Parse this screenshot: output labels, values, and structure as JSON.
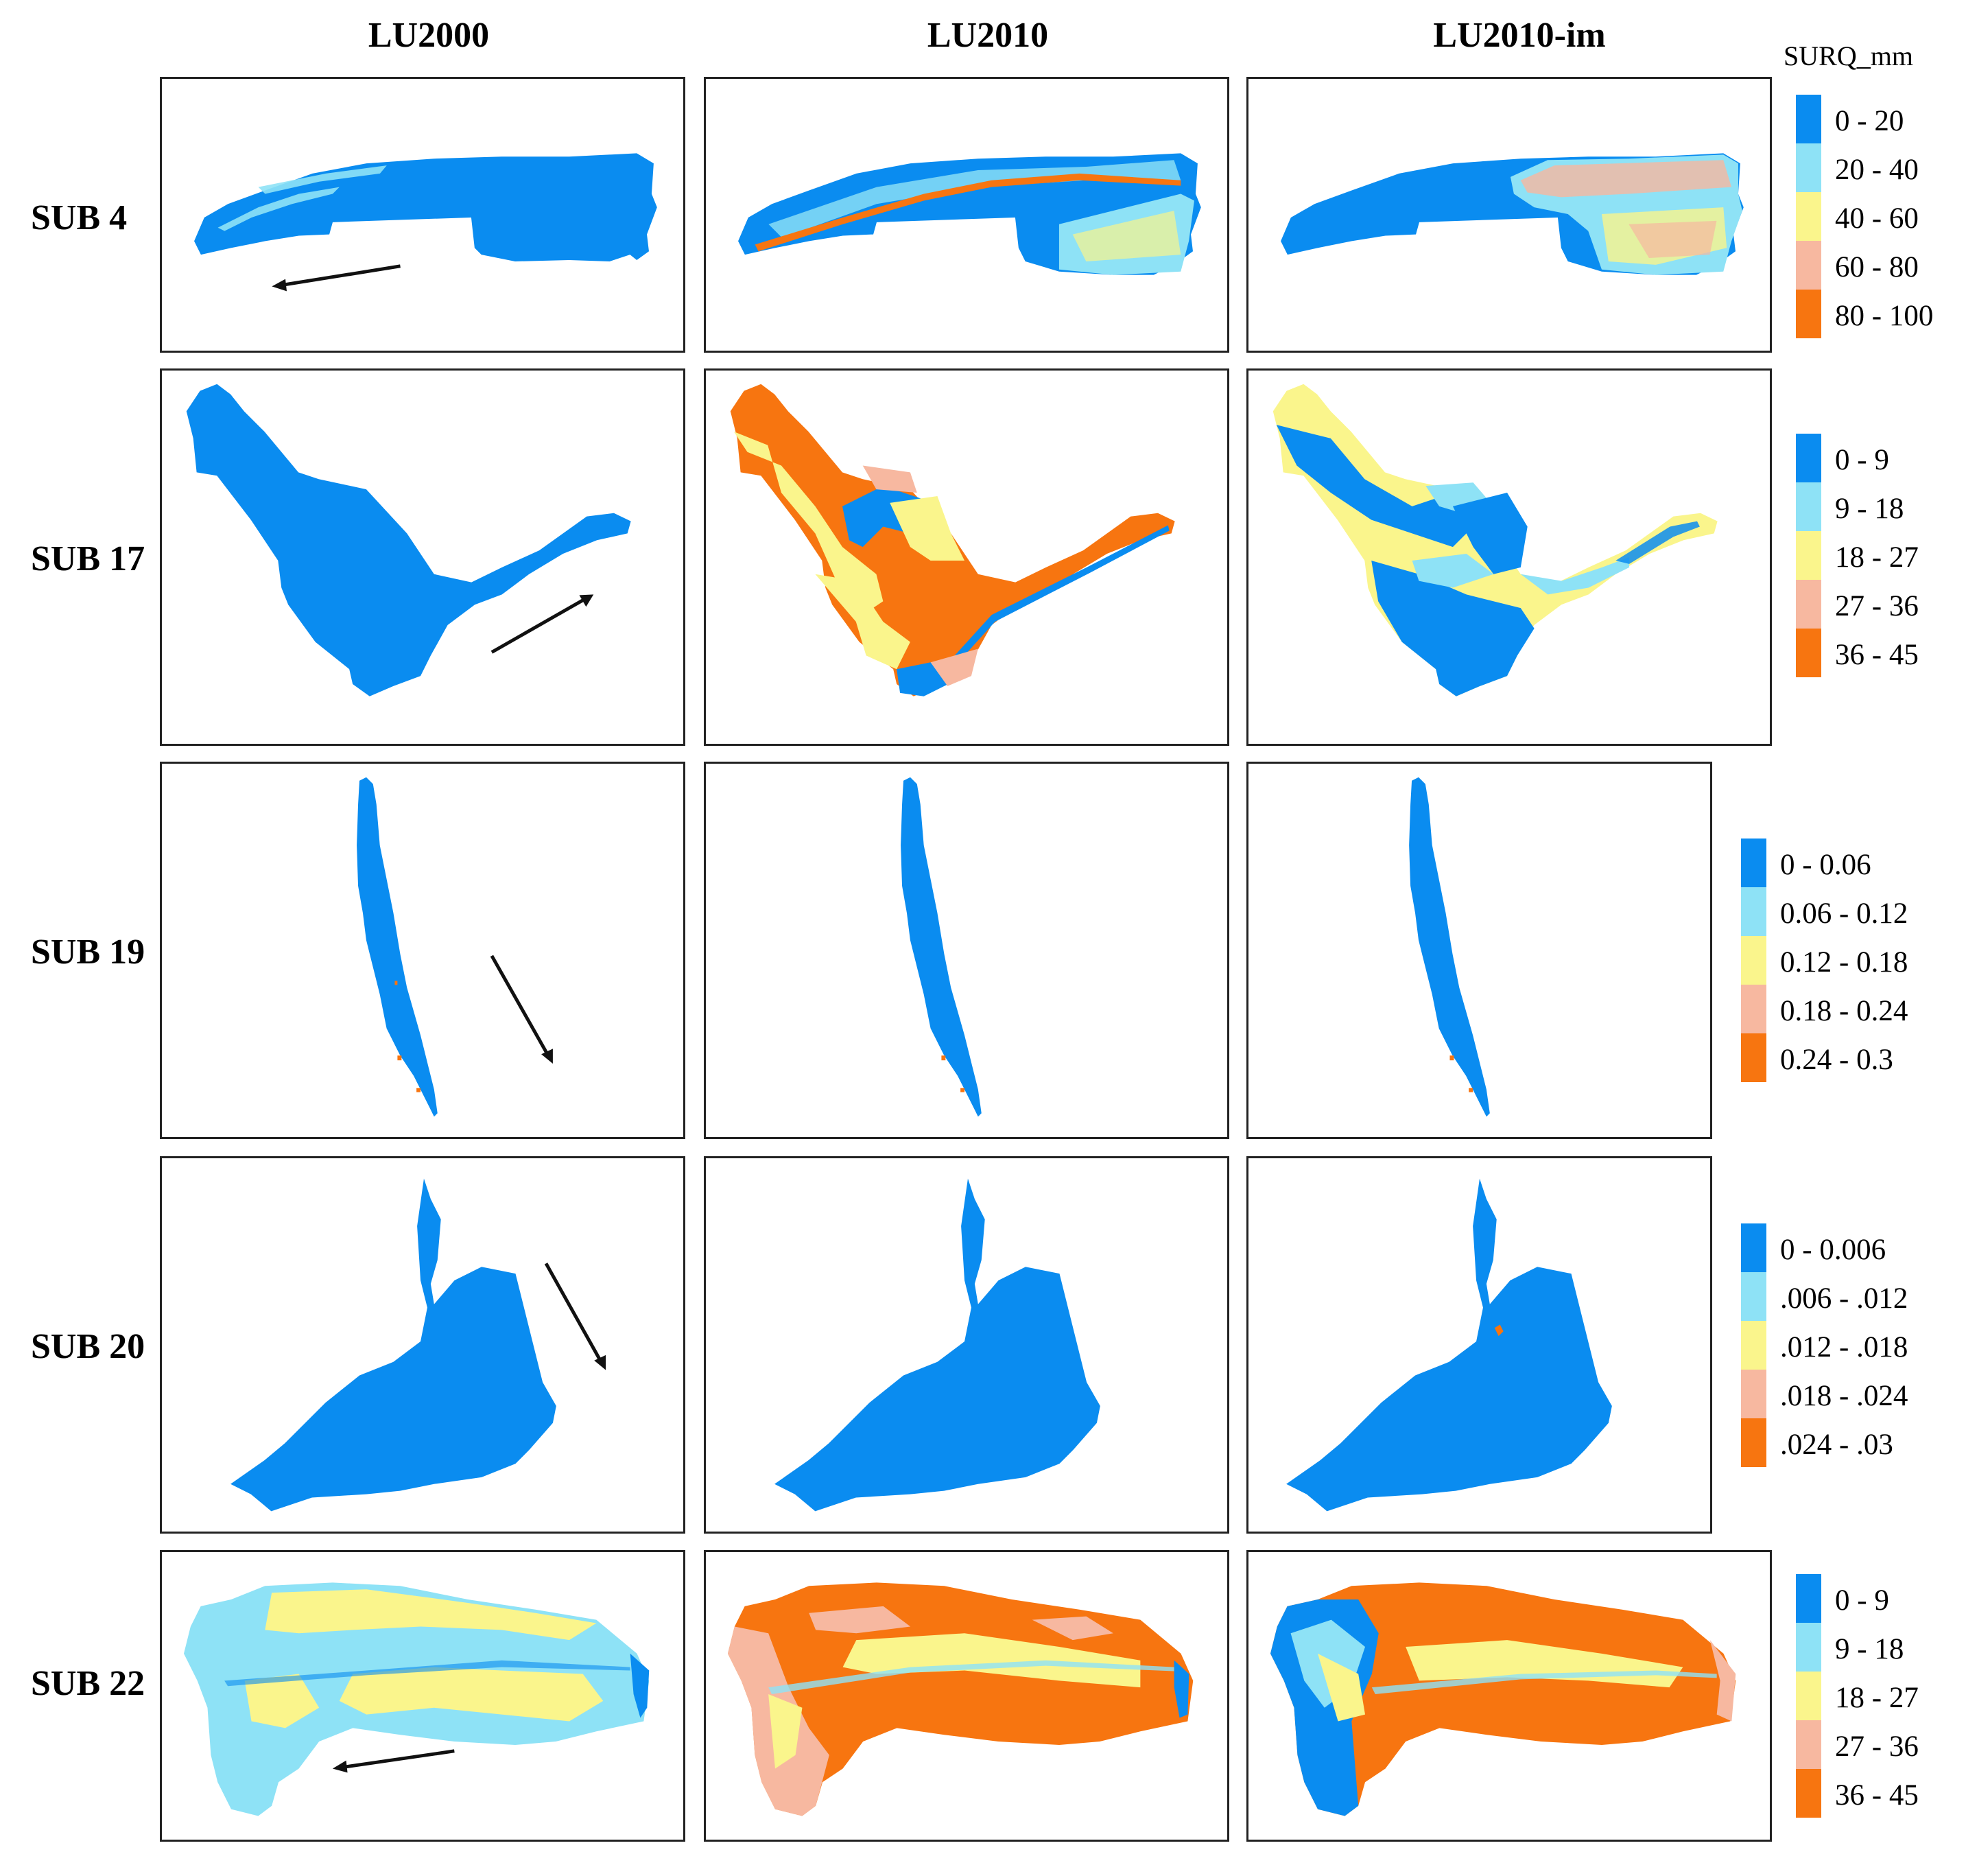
{
  "header": {
    "legend_title": "SURQ_mm",
    "columns": [
      "LU2000",
      "LU2010",
      "LU2010-im"
    ]
  },
  "colors": {
    "c1": "#0a8cf0",
    "c2": "#8ee2f6",
    "c3": "#faf58c",
    "c4": "#f7b8a0",
    "c5": "#f77510",
    "border": "#222222",
    "arrow": "#111111"
  },
  "rows": [
    {
      "label": "SUB 4",
      "legend": [
        "0 - 20",
        "20 - 40",
        "40 - 60",
        "60 - 80",
        "80 - 100"
      ]
    },
    {
      "label": "SUB 17",
      "legend": [
        "0 - 9",
        "9 - 18",
        "18 - 27",
        "27 - 36",
        "36 - 45"
      ]
    },
    {
      "label": "SUB 19",
      "legend": [
        "0 - 0.06",
        "0.06 - 0.12",
        "0.12 - 0.18",
        "0.18 - 0.24",
        "0.24 - 0.3"
      ]
    },
    {
      "label": "SUB 20",
      "legend": [
        "0 - 0.006",
        ".006 - .012",
        ".012 - .018",
        ".018 - .024",
        ".024 - .03"
      ]
    },
    {
      "label": "SUB 22",
      "legend": [
        "0 - 9",
        "9 - 18",
        "18 - 27",
        "27 - 36",
        "36 - 45"
      ]
    }
  ]
}
